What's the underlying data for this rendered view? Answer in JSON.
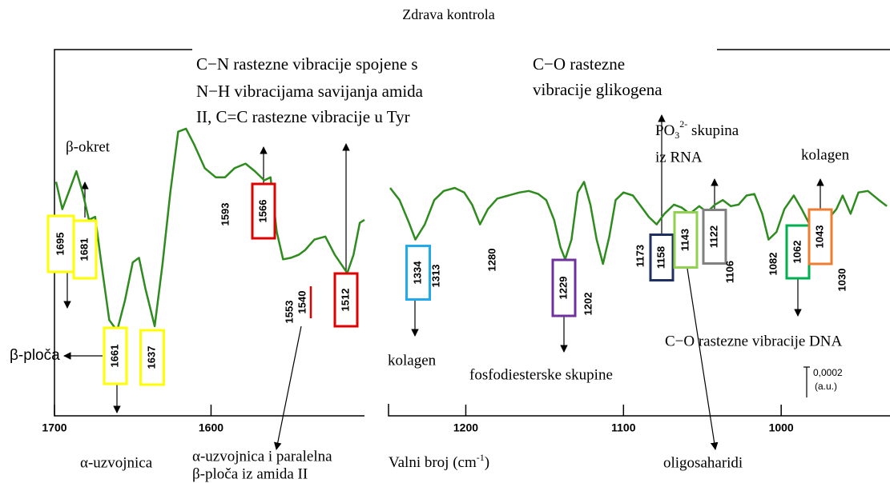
{
  "chart_data": [
    {
      "type": "line",
      "color": "#2e8b1e",
      "xlim": [
        1700,
        1502
      ],
      "xticks": [
        1700,
        1600
      ],
      "ylim": [
        0,
        0.0024
      ],
      "x": [
        1699,
        1695,
        1691,
        1686,
        1682,
        1678,
        1674,
        1670,
        1665,
        1660,
        1655,
        1650,
        1646,
        1642,
        1636,
        1631,
        1626,
        1621,
        1616,
        1611,
        1604,
        1597,
        1591,
        1585,
        1578,
        1572,
        1566,
        1562,
        1558,
        1554,
        1549,
        1544,
        1540,
        1534,
        1527,
        1521,
        1513,
        1509,
        1505,
        1502
      ],
      "values": [
        0.00154,
        0.00136,
        0.00147,
        0.00161,
        0.00147,
        0.00129,
        0.00131,
        0.001,
        0.00063,
        0.00056,
        0.00076,
        0.00101,
        0.00104,
        0.00084,
        0.00059,
        0.001,
        0.00147,
        0.00187,
        0.00189,
        0.00179,
        0.00163,
        0.00157,
        0.00157,
        0.00163,
        0.00166,
        0.00161,
        0.00155,
        0.00157,
        0.00121,
        0.00103,
        0.00104,
        0.00106,
        0.00109,
        0.00116,
        0.00118,
        0.00106,
        0.00094,
        0.00106,
        0.00127,
        0.00129
      ]
    },
    {
      "type": "line",
      "color": "#2e8b1e",
      "xlim": [
        1249,
        931
      ],
      "xticks": [
        1200,
        1100,
        1000
      ],
      "ylim": [
        0,
        0.0024
      ],
      "x": [
        1248,
        1242,
        1236,
        1232,
        1226,
        1220,
        1214,
        1207,
        1201,
        1196,
        1191,
        1186,
        1180,
        1173,
        1166,
        1160,
        1154,
        1149,
        1144,
        1140,
        1137,
        1133,
        1129,
        1125,
        1121,
        1117,
        1113,
        1109,
        1105,
        1100,
        1094,
        1089,
        1084,
        1079,
        1074,
        1068,
        1063,
        1058,
        1052,
        1047,
        1042,
        1037,
        1032,
        1027,
        1022,
        1017,
        1012,
        1008,
        1003,
        998,
        992,
        987,
        982,
        977,
        973,
        969,
        965,
        961,
        956,
        951,
        945,
        938,
        933
      ],
      "values": [
        0.0015,
        0.00142,
        0.00127,
        0.00116,
        0.00126,
        0.00142,
        0.00148,
        0.0015,
        0.00147,
        0.00139,
        0.00126,
        0.00136,
        0.00143,
        0.00145,
        0.00147,
        0.00148,
        0.00146,
        0.00142,
        0.00129,
        0.00111,
        0.00103,
        0.00116,
        0.00147,
        0.00154,
        0.00139,
        0.00116,
        0.001,
        0.00118,
        0.00142,
        0.00147,
        0.00145,
        0.00138,
        0.00131,
        0.00126,
        0.00133,
        0.00139,
        0.00137,
        0.00133,
        0.00138,
        0.00134,
        0.00139,
        0.00142,
        0.00138,
        0.00139,
        0.00145,
        0.00146,
        0.00133,
        0.00116,
        0.00121,
        0.00136,
        0.00145,
        0.00136,
        0.00126,
        0.00127,
        0.00134,
        0.00131,
        0.00136,
        0.00145,
        0.00133,
        0.00147,
        0.00148,
        0.00142,
        0.00138
      ]
    }
  ],
  "title": "Zdrava kontrola",
  "peak_labels": [
    {
      "label": "1695",
      "box_color": "#ffff00"
    },
    {
      "label": "1681",
      "box_color": "#ffff00"
    },
    {
      "label": "1661",
      "box_color": "#ffff00"
    },
    {
      "label": "1637",
      "box_color": "#ffff00"
    },
    {
      "label": "1593",
      "box_color": null
    },
    {
      "label": "1566",
      "box_color": "#e00000"
    },
    {
      "label": "1553",
      "box_color": null
    },
    {
      "label": "1540",
      "box_color": null
    },
    {
      "label": "1512",
      "box_color": "#e00000"
    },
    {
      "label": "1334",
      "box_color": "#22aaee"
    },
    {
      "label": "1313",
      "box_color": null
    },
    {
      "label": "1280",
      "box_color": null
    },
    {
      "label": "1229",
      "box_color": "#7030a0"
    },
    {
      "label": "1202",
      "box_color": null
    },
    {
      "label": "1173",
      "box_color": null
    },
    {
      "label": "1158",
      "box_color": "#1f2f5f"
    },
    {
      "label": "1143",
      "box_color": "#92d050"
    },
    {
      "label": "1122",
      "box_color": "#808080"
    },
    {
      "label": "1106",
      "box_color": null
    },
    {
      "label": "1082",
      "box_color": null
    },
    {
      "label": "1062",
      "box_color": "#00b050"
    },
    {
      "label": "1043",
      "box_color": "#ed7d31"
    },
    {
      "label": "1030",
      "box_color": null
    }
  ],
  "annotations": {
    "cn": [
      "C−N rastezne vibracije spojene s",
      "N−H vibracijama savijanja amida",
      "II, C=C rastezne vibracije u Tyr"
    ],
    "co_glyc": [
      "C−O rastezne",
      "vibracije glikogena"
    ],
    "beta_turn": "β-okret",
    "po3": {
      "base": "PO",
      "sub": "3",
      "sup": "2-",
      "rest": " skupina",
      "line2": "iz RNA"
    },
    "collagen_top": "kolagen",
    "beta_sheet": "β-ploča",
    "collagen_bottom": "kolagen",
    "phosphodiester": "fosfodiesterske skupine",
    "co_dna": "C−O rastezne vibracije DNA",
    "alpha": "α-uzvojnica",
    "alpha_beta": [
      "α-uzvojnica i paralelna",
      "β-ploča iz amida II"
    ],
    "xlabel": {
      "base": "Valni broj (cm",
      "sup": "-1",
      "rest": ")"
    },
    "oligo": "oligosaharidi"
  },
  "scale_bar": {
    "value": 0.0002,
    "label": "0,0002",
    "unit": "(a.u.)"
  }
}
